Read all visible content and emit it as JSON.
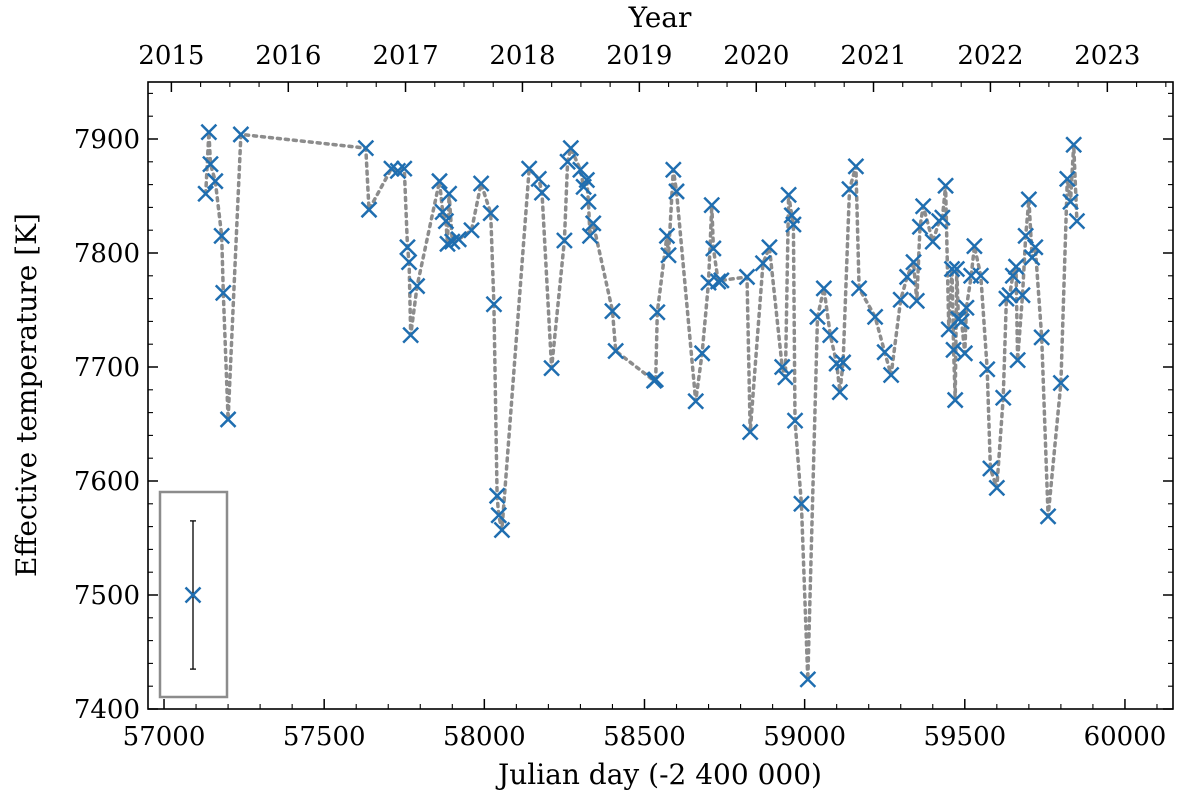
{
  "chart_data": {
    "type": "scatter",
    "xlabel": "Julian day (-2 400 000)",
    "ylabel": "Effective temperature [K]",
    "top_xlabel": "Year",
    "xlim": [
      56950,
      60150
    ],
    "ylim": [
      7400,
      7950
    ],
    "x_ticks": [
      "57000",
      "57500",
      "58000",
      "58500",
      "59000",
      "59500",
      "60000"
    ],
    "y_ticks": [
      "7400",
      "7500",
      "7600",
      "7700",
      "7800",
      "7900"
    ],
    "top_ticks": [
      {
        "label": "2015",
        "jd": 57023
      },
      {
        "label": "2016",
        "jd": 57388
      },
      {
        "label": "2017",
        "jd": 57754
      },
      {
        "label": "2018",
        "jd": 58119
      },
      {
        "label": "2019",
        "jd": 58484
      },
      {
        "label": "2020",
        "jd": 58849
      },
      {
        "label": "2021",
        "jd": 59215
      },
      {
        "label": "2022",
        "jd": 59580
      },
      {
        "label": "2023",
        "jd": 59945
      }
    ],
    "grid": false,
    "marker": "x",
    "line": "dotted",
    "series_color": "#1f6eb0",
    "line_color": "#8c8c8c",
    "errorbar_example": {
      "x": 57140,
      "y": 7500,
      "yerr": 65
    },
    "points": [
      [
        57130,
        7852
      ],
      [
        57140,
        7906
      ],
      [
        57145,
        7878
      ],
      [
        57160,
        7863
      ],
      [
        57180,
        7815
      ],
      [
        57185,
        7765
      ],
      [
        57200,
        7654
      ],
      [
        57240,
        7904
      ],
      [
        57630,
        7892
      ],
      [
        57640,
        7838
      ],
      [
        57710,
        7874
      ],
      [
        57730,
        7872
      ],
      [
        57750,
        7874
      ],
      [
        57760,
        7805
      ],
      [
        57765,
        7792
      ],
      [
        57770,
        7728
      ],
      [
        57790,
        7771
      ],
      [
        57860,
        7863
      ],
      [
        57870,
        7836
      ],
      [
        57880,
        7828
      ],
      [
        57885,
        7808
      ],
      [
        57890,
        7852
      ],
      [
        57900,
        7810
      ],
      [
        57920,
        7812
      ],
      [
        57960,
        7820
      ],
      [
        57990,
        7861
      ],
      [
        58020,
        7835
      ],
      [
        58030,
        7755
      ],
      [
        58040,
        7587
      ],
      [
        58045,
        7570
      ],
      [
        58055,
        7557
      ],
      [
        58140,
        7874
      ],
      [
        58170,
        7865
      ],
      [
        58180,
        7853
      ],
      [
        58210,
        7699
      ],
      [
        58250,
        7811
      ],
      [
        58260,
        7880
      ],
      [
        58270,
        7892
      ],
      [
        58300,
        7873
      ],
      [
        58310,
        7858
      ],
      [
        58320,
        7864
      ],
      [
        58325,
        7845
      ],
      [
        58330,
        7815
      ],
      [
        58340,
        7826
      ],
      [
        58400,
        7749
      ],
      [
        58410,
        7714
      ],
      [
        58530,
        7688
      ],
      [
        58535,
        7689
      ],
      [
        58540,
        7748
      ],
      [
        58570,
        7815
      ],
      [
        58575,
        7798
      ],
      [
        58590,
        7873
      ],
      [
        58600,
        7854
      ],
      [
        58660,
        7670
      ],
      [
        58680,
        7712
      ],
      [
        58700,
        7774
      ],
      [
        58710,
        7842
      ],
      [
        58715,
        7804
      ],
      [
        58730,
        7775
      ],
      [
        58740,
        7776
      ],
      [
        58820,
        7779
      ],
      [
        58830,
        7643
      ],
      [
        58870,
        7791
      ],
      [
        58890,
        7805
      ],
      [
        58930,
        7700
      ],
      [
        58940,
        7691
      ],
      [
        58950,
        7851
      ],
      [
        58960,
        7833
      ],
      [
        58965,
        7825
      ],
      [
        58970,
        7653
      ],
      [
        58990,
        7580
      ],
      [
        59010,
        7426
      ],
      [
        59040,
        7744
      ],
      [
        59060,
        7769
      ],
      [
        59080,
        7728
      ],
      [
        59100,
        7703
      ],
      [
        59110,
        7678
      ],
      [
        59120,
        7704
      ],
      [
        59140,
        7856
      ],
      [
        59160,
        7876
      ],
      [
        59170,
        7769
      ],
      [
        59220,
        7744
      ],
      [
        59250,
        7713
      ],
      [
        59270,
        7693
      ],
      [
        59300,
        7759
      ],
      [
        59320,
        7779
      ],
      [
        59340,
        7792
      ],
      [
        59350,
        7758
      ],
      [
        59360,
        7823
      ],
      [
        59370,
        7841
      ],
      [
        59400,
        7810
      ],
      [
        59420,
        7828
      ],
      [
        59430,
        7831
      ],
      [
        59440,
        7859
      ],
      [
        59450,
        7733
      ],
      [
        59460,
        7786
      ],
      [
        59465,
        7715
      ],
      [
        59470,
        7671
      ],
      [
        59475,
        7786
      ],
      [
        59480,
        7742
      ],
      [
        59490,
        7740
      ],
      [
        59500,
        7712
      ],
      [
        59505,
        7752
      ],
      [
        59520,
        7780
      ],
      [
        59530,
        7806
      ],
      [
        59550,
        7780
      ],
      [
        59570,
        7698
      ],
      [
        59580,
        7611
      ],
      [
        59600,
        7594
      ],
      [
        59620,
        7673
      ],
      [
        59630,
        7760
      ],
      [
        59640,
        7763
      ],
      [
        59650,
        7780
      ],
      [
        59660,
        7788
      ],
      [
        59665,
        7706
      ],
      [
        59680,
        7763
      ],
      [
        59690,
        7815
      ],
      [
        59700,
        7847
      ],
      [
        59710,
        7796
      ],
      [
        59720,
        7805
      ],
      [
        59740,
        7726
      ],
      [
        59760,
        7569
      ],
      [
        59800,
        7686
      ],
      [
        59820,
        7865
      ],
      [
        59830,
        7845
      ],
      [
        59840,
        7895
      ],
      [
        59850,
        7828
      ]
    ]
  }
}
